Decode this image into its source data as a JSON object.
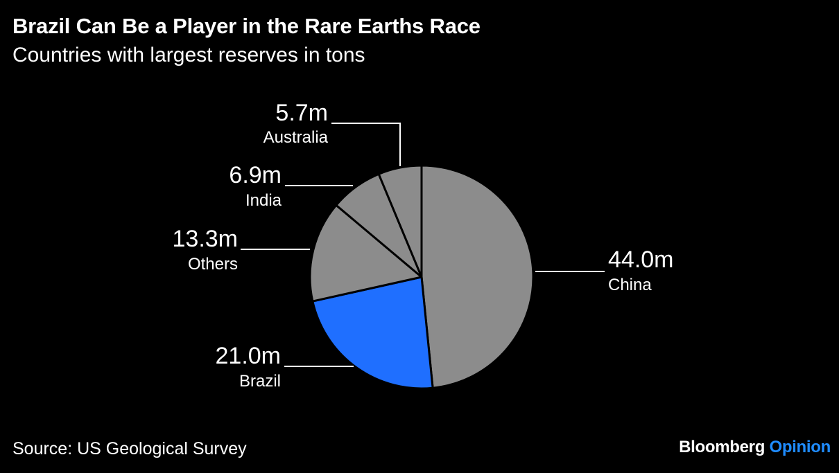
{
  "header": {
    "title": "Brazil Can Be a Player in the Rare Earths Race",
    "subtitle": "Countries with largest reserves in tons"
  },
  "footer": {
    "source": "Source: US Geological Survey",
    "brand_main": "Bloomberg",
    "brand_accent": "Opinion"
  },
  "colors": {
    "background": "#000000",
    "slice_default": "#8c8c8c",
    "slice_highlight": "#1f6fff",
    "slice_border": "#000000",
    "text": "#ffffff",
    "brand_accent": "#1f8cff"
  },
  "chart_data": {
    "type": "pie",
    "unit": "tons",
    "start": "top",
    "direction": "clockwise",
    "slices": [
      {
        "label": "China",
        "value": 44.0,
        "value_label": "44.0m",
        "highlight": false
      },
      {
        "label": "Brazil",
        "value": 21.0,
        "value_label": "21.0m",
        "highlight": true
      },
      {
        "label": "Others",
        "value": 13.3,
        "value_label": "13.3m",
        "highlight": false
      },
      {
        "label": "India",
        "value": 6.9,
        "value_label": "6.9m",
        "highlight": false
      },
      {
        "label": "Australia",
        "value": 5.7,
        "value_label": "5.7m",
        "highlight": false
      }
    ]
  }
}
